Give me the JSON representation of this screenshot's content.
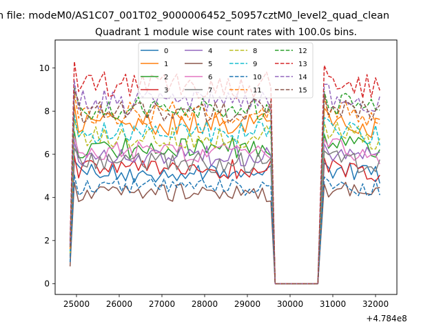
{
  "chart_data": {
    "type": "line",
    "suptitle": "n file: modeM0/AS1C07_001T02_9000006452_50957cztM0_level2_quad_clean",
    "title": "Quadrant 1 module wise count rates with 100.0s bins.",
    "xlabel": "",
    "ylabel": "",
    "x_offset_label": "+4.784e8",
    "xlim": [
      24500,
      32500
    ],
    "ylim": [
      -0.5,
      11.3
    ],
    "xticks": [
      25000,
      26000,
      27000,
      28000,
      29000,
      30000,
      31000,
      32000
    ],
    "xtick_labels": [
      "25000",
      "26000",
      "27000",
      "28000",
      "29000",
      "30000",
      "31000",
      "32000"
    ],
    "yticks": [
      0,
      2,
      4,
      6,
      8,
      10
    ],
    "ytick_labels": [
      "0",
      "2",
      "4",
      "6",
      "8",
      "10"
    ],
    "grid": false,
    "legend_position": "upper center",
    "segments": [
      {
        "start": 24850,
        "end": 29650,
        "edge_start": 24850,
        "edge_end": 29600
      },
      {
        "start": 30700,
        "end": 32150,
        "edge_start": 30800,
        "edge_end": 32150
      }
    ],
    "gap_value": 0,
    "bin_width": 100,
    "series": [
      {
        "name": "0",
        "color": "#1f77b4",
        "dash": "solid",
        "level": 5.1,
        "low_start": 1.4,
        "low_end": 3.9
      },
      {
        "name": "1",
        "color": "#ff7f0e",
        "dash": "solid",
        "level": 7.4,
        "low_start": 1.6,
        "low_end": 5.5
      },
      {
        "name": "2",
        "color": "#2ca02c",
        "dash": "solid",
        "level": 6.3,
        "low_start": 1.5,
        "low_end": 4.6
      },
      {
        "name": "3",
        "color": "#d62728",
        "dash": "solid",
        "level": 5.3,
        "low_start": 1.2,
        "low_end": 4.2
      },
      {
        "name": "4",
        "color": "#9467bd",
        "dash": "solid",
        "level": 5.9,
        "low_start": 1.3,
        "low_end": 4.8
      },
      {
        "name": "5",
        "color": "#8c564b",
        "dash": "solid",
        "level": 4.2,
        "low_start": 0.8,
        "low_end": 3.4
      },
      {
        "name": "6",
        "color": "#e377c2",
        "dash": "solid",
        "level": 6.1,
        "low_start": 1.3,
        "low_end": 4.9
      },
      {
        "name": "7",
        "color": "#7f7f7f",
        "dash": "solid",
        "level": 5.6,
        "low_start": 1.2,
        "low_end": 4.5
      },
      {
        "name": "8",
        "color": "#bcbd22",
        "dash": "dashed",
        "level": 6.8,
        "low_start": 1.4,
        "low_end": 5.3
      },
      {
        "name": "9",
        "color": "#17becf",
        "dash": "dashed",
        "level": 7.0,
        "low_start": 1.5,
        "low_end": 5.6
      },
      {
        "name": "10",
        "color": "#1f77b4",
        "dash": "dashed",
        "level": 4.5,
        "low_start": 1.0,
        "low_end": 3.8
      },
      {
        "name": "11",
        "color": "#ff7f0e",
        "dash": "dashed",
        "level": 7.9,
        "low_start": 1.6,
        "low_end": 6.0
      },
      {
        "name": "12",
        "color": "#2ca02c",
        "dash": "dashed",
        "level": 8.1,
        "low_start": 1.7,
        "low_end": 6.4
      },
      {
        "name": "13",
        "color": "#d62728",
        "dash": "dashed",
        "level": 9.2,
        "low_start": 2.0,
        "low_end": 7.3
      },
      {
        "name": "14",
        "color": "#9467bd",
        "dash": "dashed",
        "level": 8.4,
        "low_start": 1.8,
        "low_end": 6.7
      },
      {
        "name": "15",
        "color": "#8c564b",
        "dash": "dashed",
        "level": 8.0,
        "low_start": 1.7,
        "low_end": 6.3
      }
    ]
  }
}
